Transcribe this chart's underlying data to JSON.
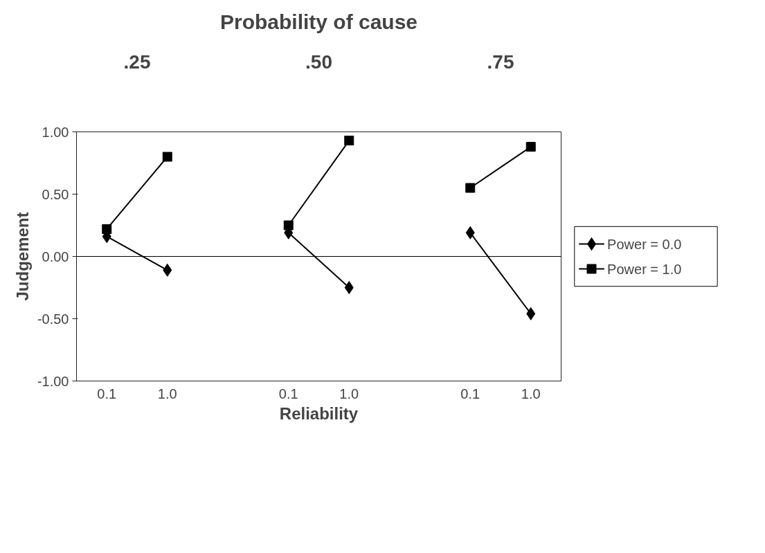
{
  "chart_data": {
    "type": "line",
    "title": "Probability of cause",
    "xlabel": "Reliability",
    "ylabel": "Judgement",
    "annotations": [
      ".25",
      ".50",
      ".75"
    ],
    "categories": [
      "0.1",
      "1.0",
      null,
      "0.1",
      "1.0",
      null,
      "0.1",
      "1.0"
    ],
    "series": [
      {
        "name": "Power = 0.0",
        "color": "#000000",
        "marker": "diamond",
        "values": [
          0.16,
          -0.11,
          null,
          0.19,
          -0.25,
          null,
          0.19,
          -0.46
        ]
      },
      {
        "name": "Power = 1.0",
        "color": "#000000",
        "marker": "square",
        "values": [
          0.22,
          0.8,
          null,
          0.25,
          0.93,
          null,
          0.55,
          0.88
        ]
      }
    ],
    "ylim": [
      -1,
      1
    ],
    "yticks": [
      {
        "value": -1,
        "label": "-1.00"
      },
      {
        "value": -0.5,
        "label": "-0.50"
      },
      {
        "value": 0,
        "label": "0.00"
      },
      {
        "value": 0.5,
        "label": "0.50"
      },
      {
        "value": 1,
        "label": "1.00"
      }
    ],
    "ref_lines": [
      {
        "axis": "y",
        "value": 0,
        "color": "#000000"
      }
    ],
    "grid": false,
    "legend": "right",
    "line_style": "solid"
  }
}
